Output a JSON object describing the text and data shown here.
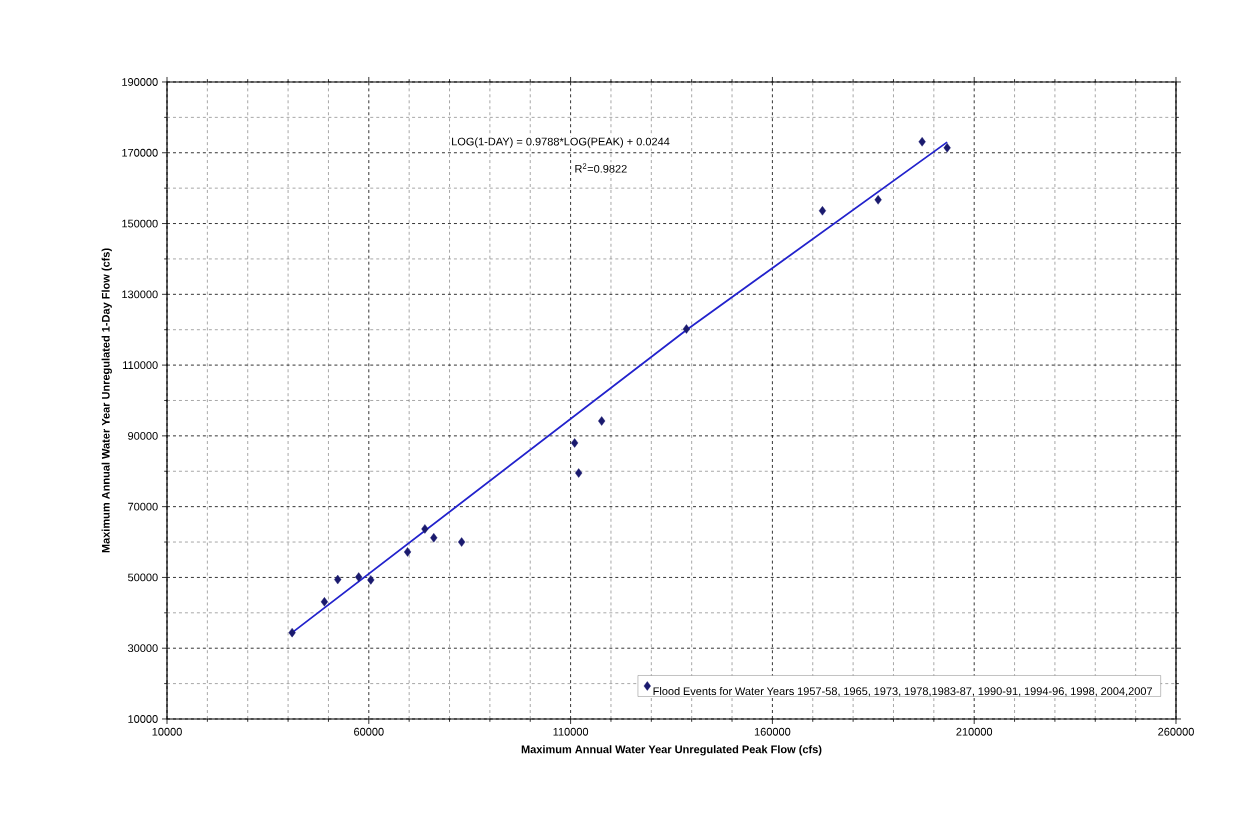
{
  "chart_data": {
    "type": "scatter",
    "xlabel": "Maximum Annual Water Year Unregulated Peak Flow (cfs)",
    "ylabel": "Maximum Annual Water Year Unregulated 1-Day Flow (cfs)",
    "annotations": [
      "LOG(1-DAY) = 0.9788*LOG(PEAK) + 0.0244",
      "R$^{2}$=0.9822"
    ],
    "xlim": [
      10000,
      260000
    ],
    "xticks": [
      10000,
      60000,
      110000,
      160000,
      210000,
      260000
    ],
    "ylim": [
      10000,
      190000
    ],
    "yticks": [
      10000,
      30000,
      50000,
      70000,
      90000,
      110000,
      130000,
      150000,
      170000,
      190000
    ],
    "grid": true,
    "legend": "bottom right",
    "marker": "diamond",
    "series": [
      {
        "name": "Flood Events for Water Years 1957-58, 1965, 1973, 1978,1983-87, 1990-91, 1994-96, 1998, 2004,2007",
        "color": "#1a1a6e",
        "x": [
          41000,
          49000,
          52300,
          57500,
          60500,
          69600,
          73900,
          76100,
          83000,
          111000,
          112000,
          117700,
          138700,
          172400,
          186200,
          197100,
          203300
        ],
        "values": [
          34400,
          43100,
          49400,
          50100,
          49300,
          57200,
          63700,
          61200,
          60000,
          88000,
          79500,
          94200,
          120200,
          153600,
          156700,
          173100,
          171400
        ]
      },
      {
        "type": "line",
        "color": "#2222cc",
        "marker": "none",
        "line_style": "solid",
        "x": [
          41000,
          138700,
          203300
        ],
        "values": [
          34400,
          119900,
          173000
        ]
      }
    ]
  }
}
